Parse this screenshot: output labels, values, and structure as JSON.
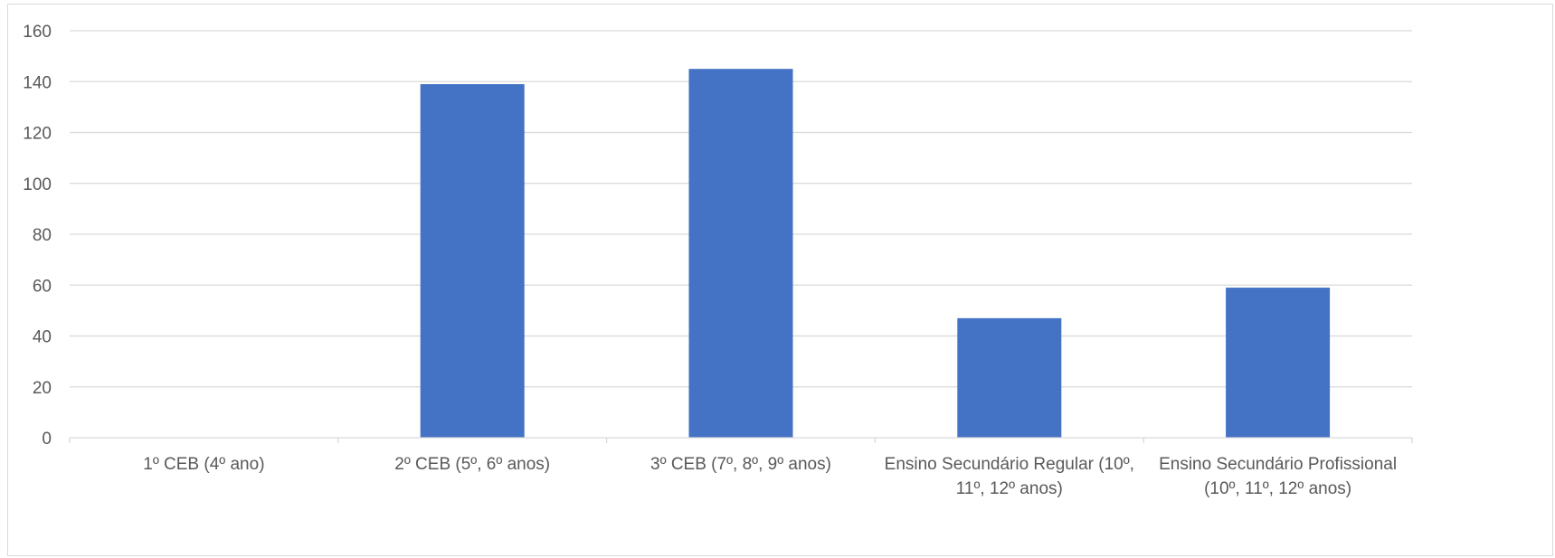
{
  "chart_data": {
    "type": "bar",
    "title": "",
    "xlabel": "",
    "ylabel": "",
    "categories": [
      [
        "1º CEB (4º ano)"
      ],
      [
        "2º CEB (5º, 6º anos)"
      ],
      [
        "3º CEB (7º, 8º, 9º anos)"
      ],
      [
        "Ensino Secundário Regular (10º,",
        "11º, 12º anos)"
      ],
      [
        "Ensino Secundário Profissional",
        "(10º, 11º, 12º anos)"
      ]
    ],
    "values": [
      0,
      139,
      145,
      47,
      59
    ],
    "ylim": [
      0,
      160
    ],
    "yticks": [
      0,
      20,
      40,
      60,
      80,
      100,
      120,
      140,
      160
    ],
    "grid": true,
    "legend": "none",
    "bar_color": "#4472c4",
    "grid_color": "#d9d9d9",
    "label_color": "#595959"
  }
}
